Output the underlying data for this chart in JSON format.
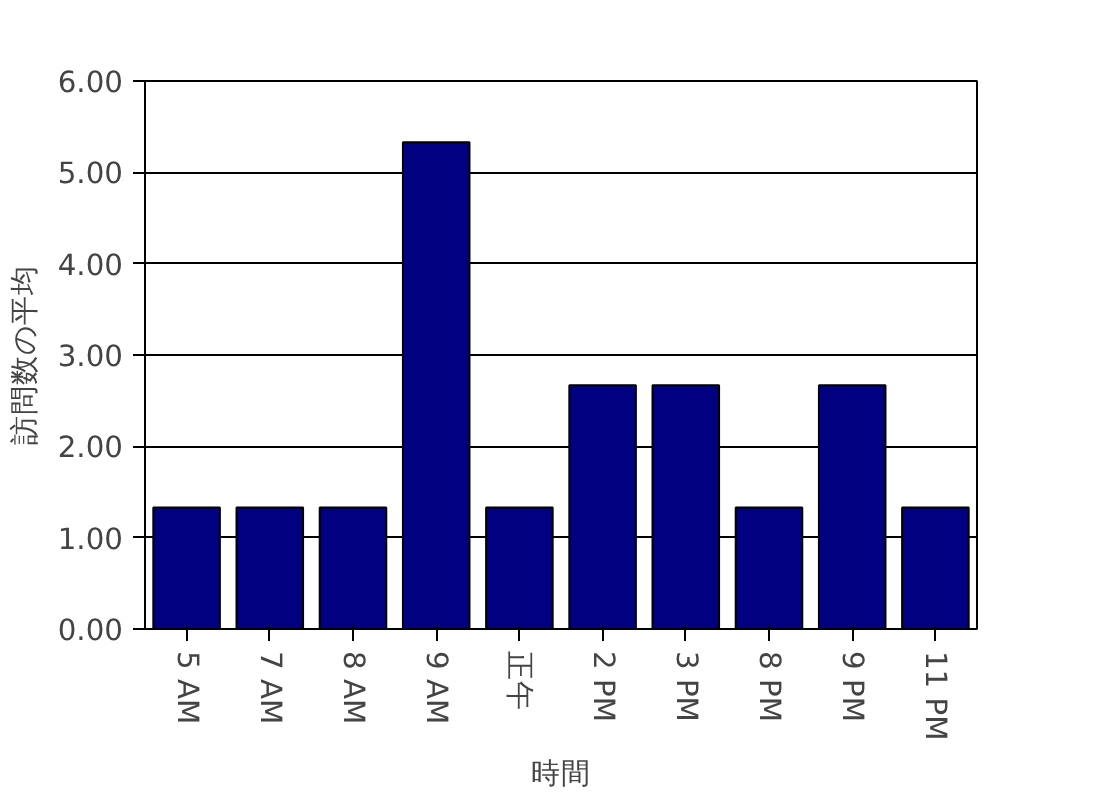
{
  "chart_data": {
    "type": "bar",
    "xlabel": "時間",
    "ylabel": "訪問数の平均",
    "categories": [
      "5 AM",
      "7 AM",
      "8 AM",
      "9 AM",
      "正午",
      "2 PM",
      "3 PM",
      "8 PM",
      "9 PM",
      "11 PM"
    ],
    "values": [
      1.33,
      1.33,
      1.33,
      5.33,
      1.33,
      2.67,
      2.67,
      1.33,
      2.67,
      1.33
    ],
    "color": "#000080",
    "ylim": [
      0,
      6
    ],
    "yticks": [
      {
        "value": 0,
        "label": "0.00"
      },
      {
        "value": 1,
        "label": "1.00"
      },
      {
        "value": 2,
        "label": "2.00"
      },
      {
        "value": 3,
        "label": "3.00"
      },
      {
        "value": 4,
        "label": "4.00"
      },
      {
        "value": 5,
        "label": "5.00"
      },
      {
        "value": 6,
        "label": "6.00"
      }
    ],
    "grid": "y"
  }
}
